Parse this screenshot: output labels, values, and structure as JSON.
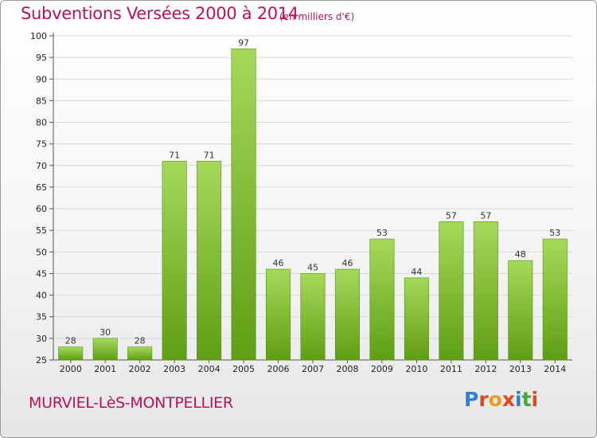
{
  "header": {
    "title": "Subventions Versées 2000 à 2014",
    "subtitle": "(en milliers d'€)"
  },
  "footer": {
    "commune": "MURVIEL-LèS-MONTPELLIER",
    "logo": {
      "text": "Proxiti",
      "letter_colors": [
        "#2b7fd4",
        "#e2461b",
        "#f29a1a",
        "#e2461b",
        "#2b7fd4",
        "#4aa43a",
        "#e2461b"
      ]
    }
  },
  "colors": {
    "title": "#b8135a",
    "bar_top": "#a6d95a",
    "bar_bottom": "#5f9e14",
    "grid": "#d8d8d8"
  },
  "chart_data": {
    "type": "bar",
    "categories": [
      "2000",
      "2001",
      "2002",
      "2003",
      "2004",
      "2005",
      "2006",
      "2007",
      "2008",
      "2009",
      "2010",
      "2011",
      "2012",
      "2013",
      "2014"
    ],
    "values": [
      28,
      30,
      28,
      71,
      71,
      97,
      46,
      45,
      46,
      53,
      44,
      57,
      57,
      48,
      53
    ],
    "title": "Subventions Versées 2000 à 2014",
    "unit_note": "(en milliers d'€)",
    "ylim": [
      25,
      100
    ],
    "yticks": [
      25,
      30,
      35,
      40,
      45,
      50,
      55,
      60,
      65,
      70,
      75,
      80,
      85,
      90,
      95,
      100
    ],
    "grid": true,
    "data_labels": true
  }
}
